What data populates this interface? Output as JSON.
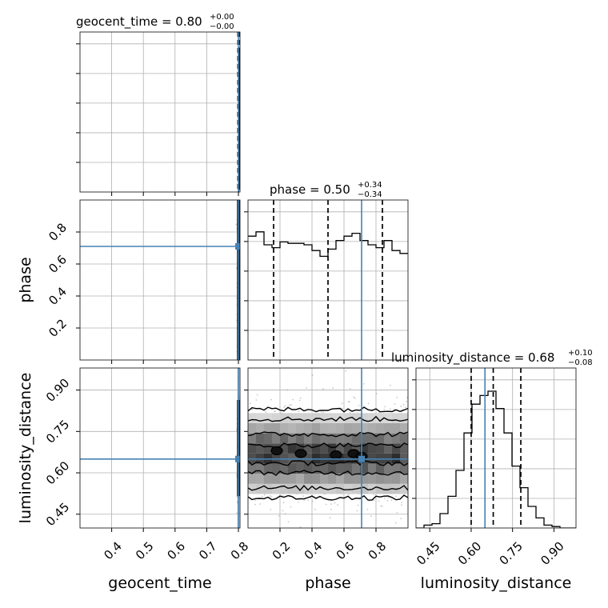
{
  "chart_data": {
    "type": "corner",
    "colors": {
      "truth": "#4682b4",
      "hist": "#000000",
      "density": "#555555",
      "scatter": "#9a9a9a",
      "grid": "#b0b0b0"
    },
    "parameters": [
      {
        "name": "geocent_time",
        "axis_label": "geocent_time",
        "title_main": "geocent_time = 0.80",
        "title_plus": "+0.00",
        "title_minus": "−0.00",
        "range": [
          0.3,
          0.805
        ],
        "ticks": [
          0.4,
          0.5,
          0.6,
          0.7,
          0.8
        ],
        "tick_labels": [
          "0.4",
          "0.5",
          "0.6",
          "0.7",
          "0.8"
        ],
        "truth": 0.8,
        "quantiles": [
          0.7985,
          0.8,
          0.8025
        ],
        "hist_counts": [
          0,
          0,
          0,
          0.02,
          0.97,
          1.0
        ]
      },
      {
        "name": "phase",
        "axis_label": "phase",
        "title_main": "phase = 0.50",
        "title_plus": "+0.34",
        "title_minus": "−0.34",
        "range": [
          0.0,
          1.0
        ],
        "ticks": [
          0.2,
          0.4,
          0.6,
          0.8
        ],
        "tick_labels": [
          "0.2",
          "0.4",
          "0.6",
          "0.8"
        ],
        "truth": 0.71,
        "quantiles": [
          0.16,
          0.5,
          0.84
        ],
        "hist_counts": [
          0.86,
          0.89,
          0.8,
          0.78,
          0.82,
          0.81,
          0.81,
          0.8,
          0.76,
          0.72,
          0.77,
          0.83,
          0.86,
          0.88,
          0.83,
          0.8,
          0.78,
          0.83,
          0.76,
          0.74
        ]
      },
      {
        "name": "luminosity_distance",
        "axis_label": "luminosity_distance",
        "title_main": "luminosity_distance = 0.68",
        "title_plus": "+0.10",
        "title_minus": "−0.08",
        "range": [
          0.4,
          0.98
        ],
        "ticks": [
          0.45,
          0.6,
          0.75,
          0.9
        ],
        "tick_labels": [
          "0.45",
          "0.60",
          "0.75",
          "0.90"
        ],
        "truth": 0.65,
        "quantiles": [
          0.6,
          0.68,
          0.78
        ],
        "hist_counts": [
          0.0,
          0.02,
          0.03,
          0.1,
          0.22,
          0.4,
          0.66,
          0.86,
          0.92,
          0.95,
          0.83,
          0.66,
          0.43,
          0.28,
          0.15,
          0.07,
          0.02,
          0.01,
          0.0,
          0.0
        ]
      }
    ]
  }
}
